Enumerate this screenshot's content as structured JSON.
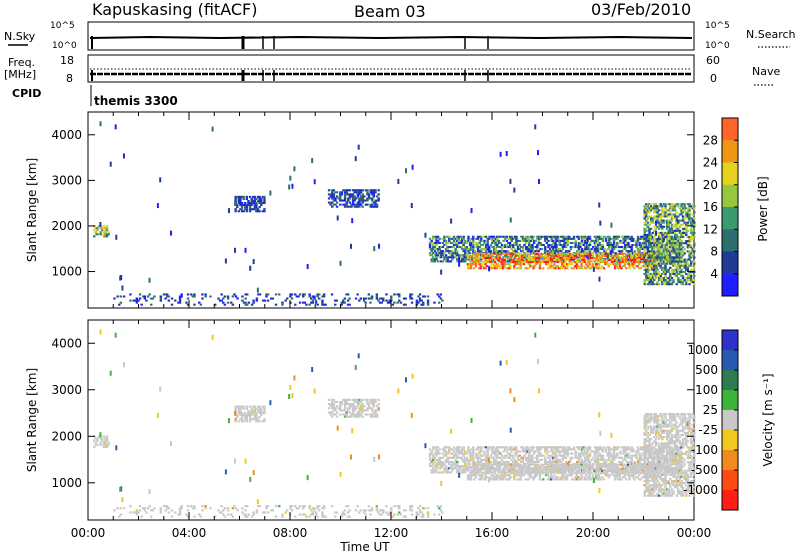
{
  "header": {
    "title": "Kapuskasing (fitACF)",
    "beam": "Beam 03",
    "date": "03/Feb/2010"
  },
  "status_panel": {
    "left_label_top": "N.Sky",
    "left_ticks_top": [
      "10^5",
      "10^0"
    ],
    "right_label_top": "N.Search",
    "right_ticks_top": [
      "10^5",
      "10^0"
    ],
    "left_label_mid_1": "Freq.",
    "left_label_mid_2": "[MHz]",
    "left_ticks_mid": [
      "18",
      "8"
    ],
    "right_label_mid": "Nave",
    "right_ticks_mid": [
      "60",
      "0"
    ],
    "cpid_label": "CPID",
    "cpid_value": "themis 3300"
  },
  "colors": {
    "power_scale": [
      "#1e1eff",
      "#1e3c96",
      "#2d6e6e",
      "#3c9b6e",
      "#96c83c",
      "#e6d21e",
      "#f09614",
      "#ff6428",
      "#ff1e14"
    ],
    "velocity_scale": [
      "#2d32c8",
      "#285ab4",
      "#2d7d50",
      "#3cb43c",
      "#c8c8c8",
      "#c8c8c8",
      "#f0c81e",
      "#f08c1e",
      "#ff4b14",
      "#ff1e14"
    ]
  },
  "chart_data": [
    {
      "type": "heatmap",
      "panel": "power",
      "ylabel": "Slant Range [km]",
      "yticks": [
        "1000",
        "2000",
        "3000",
        "4000"
      ],
      "ylim": [
        200,
        4500
      ],
      "xlim_hours": [
        0,
        24
      ],
      "colorbar_label": "Power [dB]",
      "colorbar_ticks": [
        "4",
        "8",
        "12",
        "16",
        "20",
        "24",
        "28"
      ],
      "colorbar_range": [
        0,
        32
      ],
      "echo_regions": [
        {
          "t": [
            0.2,
            0.8
          ],
          "r": [
            1750,
            2000
          ],
          "level": "mid-high"
        },
        {
          "t": [
            5.8,
            7.0
          ],
          "r": [
            2300,
            2650
          ],
          "level": "low"
        },
        {
          "t": [
            9.5,
            11.5
          ],
          "r": [
            2400,
            2800
          ],
          "level": "low"
        },
        {
          "t": [
            13.5,
            23.5
          ],
          "r": [
            1200,
            1750
          ],
          "level": "low-mid"
        },
        {
          "t": [
            15.0,
            22.5
          ],
          "r": [
            1050,
            1400
          ],
          "level": "high"
        },
        {
          "t": [
            22.0,
            24.0
          ],
          "r": [
            700,
            2500
          ],
          "level": "mid"
        },
        {
          "t": [
            1.0,
            14.0
          ],
          "r": [
            250,
            500
          ],
          "level": "low"
        }
      ]
    },
    {
      "type": "heatmap",
      "panel": "velocity",
      "ylabel": "Slant Range [km]",
      "yticks": [
        "1000",
        "2000",
        "3000",
        "4000"
      ],
      "ylim": [
        200,
        4500
      ],
      "xlabel": "Time UT",
      "xticks": [
        "00:00",
        "04:00",
        "08:00",
        "12:00",
        "16:00",
        "20:00",
        "00:00"
      ],
      "xlim_hours": [
        0,
        24
      ],
      "colorbar_label": "Velocity [m s⁻¹]",
      "colorbar_ticks": [
        "1000",
        "500",
        "100",
        "25",
        "-25",
        "-100",
        "-500",
        "-1000"
      ],
      "dominant_value_range": [
        -25,
        25
      ]
    }
  ]
}
